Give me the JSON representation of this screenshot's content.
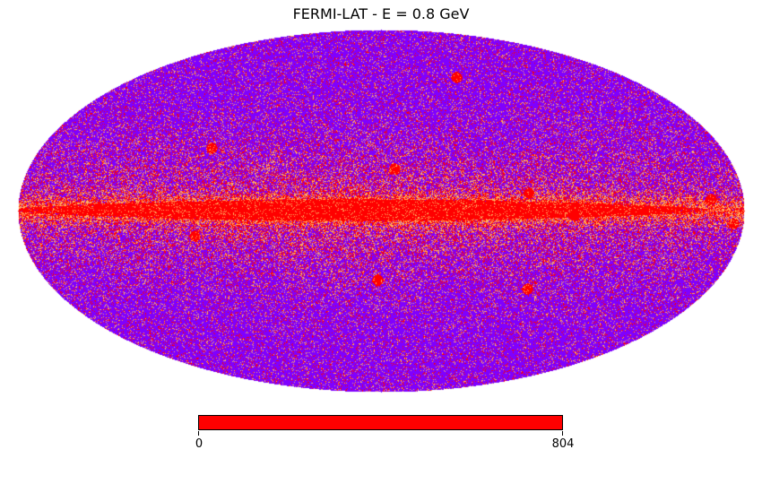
{
  "title": "FERMI-LAT - E = 0.8 GeV",
  "projection": "mollweide",
  "colors": {
    "background_sky": "#7f00ff",
    "mid_level": "#ffb060",
    "high_level": "#ff0000",
    "colorbar_fill": "#ff0000"
  },
  "colorbar": {
    "min_label": "0",
    "max_label": "804",
    "min": 0,
    "max": 804
  }
}
